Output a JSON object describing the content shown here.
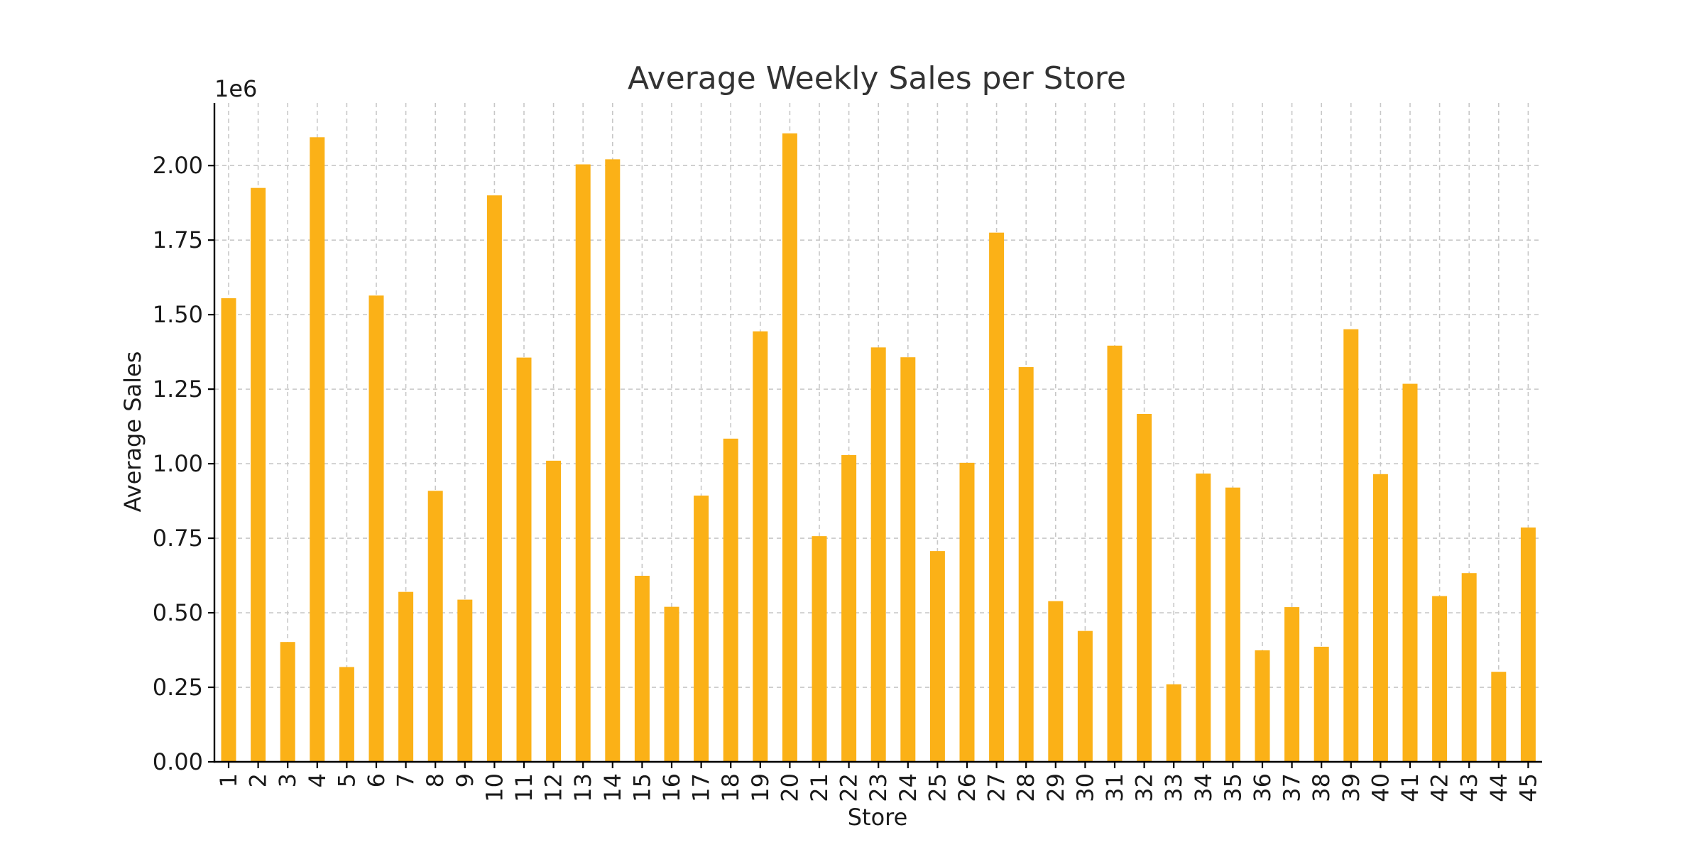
{
  "chart_data": {
    "type": "bar",
    "title": "Average Weekly Sales per Store",
    "xlabel": "Store",
    "ylabel": "Average Sales",
    "y_offset_label": "1e6",
    "ylim": [
      0,
      2.21
    ],
    "yticks": [
      "0.00",
      "0.25",
      "0.50",
      "0.75",
      "1.00",
      "1.25",
      "1.50",
      "1.75",
      "2.00"
    ],
    "ytick_values": [
      0,
      0.25,
      0.5,
      0.75,
      1.0,
      1.25,
      1.5,
      1.75,
      2.0
    ],
    "grid": true,
    "bar_color": "#FBB117",
    "categories": [
      "1",
      "2",
      "3",
      "4",
      "5",
      "6",
      "7",
      "8",
      "9",
      "10",
      "11",
      "12",
      "13",
      "14",
      "15",
      "16",
      "17",
      "18",
      "19",
      "20",
      "21",
      "22",
      "23",
      "24",
      "25",
      "26",
      "27",
      "28",
      "29",
      "30",
      "31",
      "32",
      "33",
      "34",
      "35",
      "36",
      "37",
      "38",
      "39",
      "40",
      "41",
      "42",
      "43",
      "44",
      "45"
    ],
    "values": [
      1.555,
      1.925,
      0.402,
      2.095,
      0.318,
      1.564,
      0.57,
      0.909,
      0.544,
      1.9,
      1.356,
      1.01,
      2.004,
      2.021,
      0.624,
      0.52,
      0.893,
      1.084,
      1.444,
      2.108,
      0.757,
      1.029,
      1.39,
      1.357,
      0.707,
      1.003,
      1.775,
      1.324,
      0.539,
      0.439,
      1.396,
      1.167,
      0.26,
      0.967,
      0.92,
      0.374,
      0.519,
      0.386,
      1.451,
      0.965,
      1.268,
      0.556,
      0.633,
      0.302,
      0.786
    ]
  }
}
